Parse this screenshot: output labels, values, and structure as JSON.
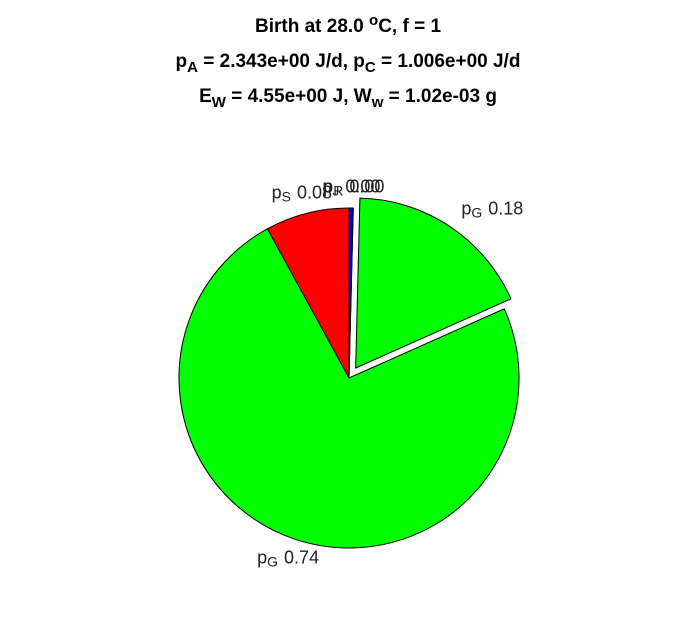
{
  "chart_data": {
    "type": "pie",
    "title": [
      [
        {
          "t": "Birth at 28.0 "
        },
        {
          "t": "o",
          "s": "sup"
        },
        {
          "t": "C, f = 1"
        }
      ],
      [
        {
          "t": "p"
        },
        {
          "t": "A",
          "s": "sub"
        },
        {
          "t": " = 2.343e+00 J/d, p"
        },
        {
          "t": "C",
          "s": "sub"
        },
        {
          "t": " = 1.006e+00 J/d"
        }
      ],
      [
        {
          "t": "E"
        },
        {
          "t": "W",
          "s": "sub"
        },
        {
          "t": " = 4.55e+00 J, W"
        },
        {
          "t": "w",
          "s": "sub"
        },
        {
          "t": " = 1.02e-03 g"
        }
      ]
    ],
    "labels": [
      [
        "p",
        "S"
      ],
      [
        "p",
        "G"
      ],
      [
        "p",
        "G"
      ],
      [
        "p",
        "R"
      ],
      [
        "p",
        "J"
      ]
    ],
    "values": [
      0.08,
      0.74,
      0.18,
      0.0,
      0.004
    ],
    "value_labels": [
      "0.08",
      "0.74",
      "0.18",
      "0.00",
      "0.00"
    ],
    "colors": [
      "#ff0000",
      "#00ff00",
      "#00ff00",
      "#ff00ff",
      "#0000cc"
    ],
    "explode": [
      false,
      false,
      true,
      false,
      false
    ]
  }
}
